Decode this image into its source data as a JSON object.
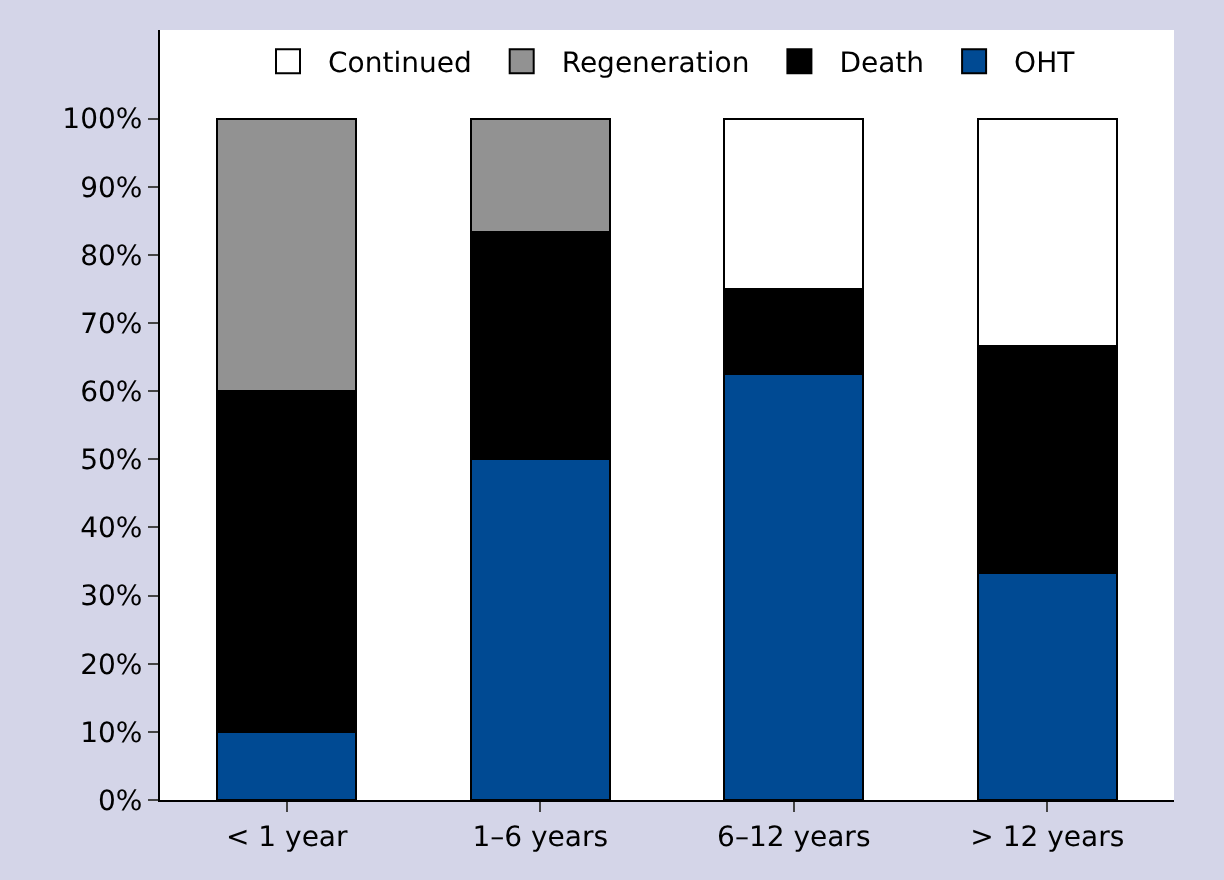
{
  "chart_data": {
    "type": "bar",
    "stacked": true,
    "categories": [
      "< 1 year",
      "1–6 years",
      "6–12 years",
      "> 12 years"
    ],
    "series": [
      {
        "name": "OHT",
        "color": "#004a93",
        "values": [
          10,
          50,
          62.5,
          33.3
        ]
      },
      {
        "name": "Death",
        "color": "#000000",
        "values": [
          50,
          33.3,
          12.5,
          33.3
        ]
      },
      {
        "name": "Regeneration",
        "color": "#929292",
        "values": [
          40,
          16.7,
          null,
          null
        ]
      },
      {
        "name": "Continued",
        "color": "#ffffff",
        "values": [
          null,
          null,
          25,
          33.4
        ]
      }
    ],
    "ylim": [
      0,
      113
    ],
    "yticks": [
      {
        "value": 0,
        "label": "0%"
      },
      {
        "value": 10,
        "label": "10%"
      },
      {
        "value": 20,
        "label": "20%"
      },
      {
        "value": 30,
        "label": "30%"
      },
      {
        "value": 40,
        "label": "40%"
      },
      {
        "value": 50,
        "label": "50%"
      },
      {
        "value": 60,
        "label": "60%"
      },
      {
        "value": 70,
        "label": "70%"
      },
      {
        "value": 80,
        "label": "80%"
      },
      {
        "value": 90,
        "label": "90%"
      },
      {
        "value": 100,
        "label": "100%"
      }
    ],
    "legend": "top"
  }
}
